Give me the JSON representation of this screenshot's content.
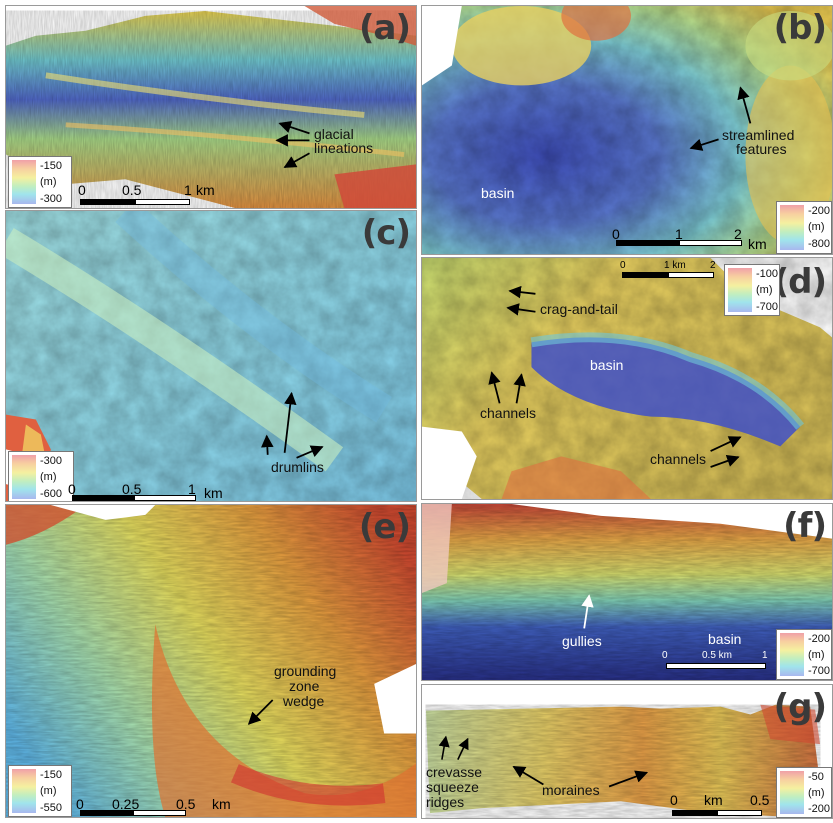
{
  "panels": {
    "a": {
      "label": "(a)",
      "annotations": [
        "glacial",
        "lineations"
      ],
      "legend": {
        "top": "-150",
        "unit": "(m)",
        "bottom": "-300"
      },
      "scale": {
        "ticks": [
          "0",
          "0.5",
          "1"
        ],
        "unit": "km"
      }
    },
    "b": {
      "label": "(b)",
      "annotations": [
        "streamlined",
        "features",
        "basin"
      ],
      "legend": {
        "top": "-200",
        "unit": "(m)",
        "bottom": "-800"
      },
      "scale": {
        "ticks": [
          "0",
          "1",
          "2"
        ],
        "unit": "km"
      }
    },
    "c": {
      "label": "(c)",
      "annotations": [
        "drumlins"
      ],
      "legend": {
        "top": "-300",
        "unit": "(m)",
        "bottom": "-600"
      },
      "scale": {
        "ticks": [
          "0",
          "0.5",
          "1"
        ],
        "unit": "km"
      }
    },
    "d": {
      "label": "(d)",
      "annotations": [
        "crag-and-tail",
        "basin",
        "channels",
        "channels"
      ],
      "legend": {
        "top": "-100",
        "unit": "(m)",
        "bottom": "-700"
      },
      "scale": {
        "ticks": [
          "0",
          "1 km",
          "2"
        ]
      }
    },
    "e": {
      "label": "(e)",
      "annotations": [
        "grounding",
        "zone",
        "wedge"
      ],
      "legend": {
        "top": "-150",
        "unit": "(m)",
        "bottom": "-550"
      },
      "scale": {
        "ticks": [
          "0",
          "0.25",
          "0.5"
        ],
        "unit": "km"
      }
    },
    "f": {
      "label": "(f)",
      "annotations": [
        "gullies",
        "basin"
      ],
      "legend": {
        "top": "-200",
        "unit": "(m)",
        "bottom": "-700"
      },
      "scale": {
        "ticks": [
          "0",
          "0.5 km",
          "1"
        ]
      }
    },
    "g": {
      "label": "(g)",
      "annotations": [
        "crevasse",
        "squeeze",
        "ridges",
        "moraines"
      ],
      "legend": {
        "top": "-50",
        "unit": "(m)",
        "bottom": "-200"
      },
      "scale": {
        "ticks": [
          "0",
          "km",
          "0.5"
        ]
      }
    }
  }
}
